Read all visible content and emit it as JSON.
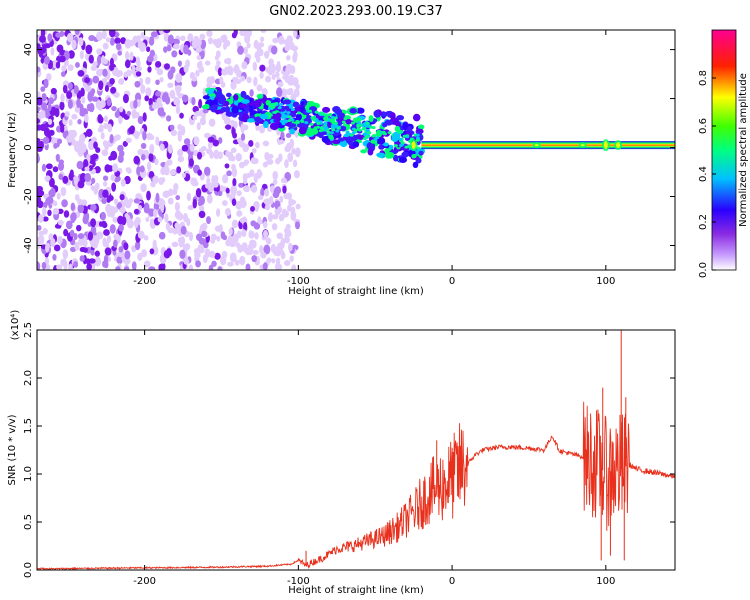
{
  "title": "GN02.2023.293.00.19.C37",
  "chart_data": [
    {
      "type": "heatmap",
      "xlabel": "Height of straight line (km)",
      "ylabel": "Frequency (Hz)",
      "xlim": [
        -270,
        145
      ],
      "ylim": [
        -50,
        48
      ],
      "xticks": [
        -200,
        -100,
        0,
        100
      ],
      "yticks": [
        40,
        20,
        0,
        -20,
        -40
      ],
      "colorbar": {
        "label": "Normalized spectral amplitude",
        "range": [
          0.0,
          1.0
        ],
        "ticks": [
          0.0,
          0.2,
          0.4,
          0.6,
          0.8
        ],
        "colormap": [
          "#ffffff",
          "#8a2be2",
          "#2a00ff",
          "#00c0ff",
          "#00ff60",
          "#ffff00",
          "#ff2000",
          "#ff0090"
        ]
      },
      "features": [
        {
          "x": [
            -270,
            -100
          ],
          "f": [
            -50,
            48
          ],
          "amplitude": 0.12,
          "pattern": "scattered noise"
        },
        {
          "x": [
            -160,
            -20
          ],
          "f_start": 20,
          "f_end": 2,
          "amplitude": 0.35,
          "pattern": "descending band"
        },
        {
          "x": [
            -20,
            145
          ],
          "f": 1,
          "amplitude": 0.9,
          "pattern": "steady tone"
        }
      ]
    },
    {
      "type": "line",
      "xlabel": "Height of straight line (km)",
      "ylabel": "SNR (10 * v/v)",
      "multiplier": "(x10⁴)",
      "xlim": [
        -270,
        145
      ],
      "ylim": [
        0,
        2.5
      ],
      "xticks": [
        -200,
        -100,
        0,
        100
      ],
      "yticks": [
        "0.0",
        "0.5",
        "1.0",
        "1.5",
        "2.0",
        "2.5"
      ],
      "series": [
        {
          "color": "#e8301c",
          "x": [
            -270,
            -250,
            -220,
            -180,
            -150,
            -120,
            -105,
            -100,
            -95,
            -85,
            -75,
            -65,
            -55,
            -45,
            -35,
            -25,
            -15,
            -5,
            0,
            5,
            10,
            15,
            20,
            30,
            40,
            50,
            60,
            65,
            70,
            80,
            85,
            90,
            95,
            100,
            105,
            110,
            115,
            120,
            130,
            145
          ],
          "y": [
            0.01,
            0.015,
            0.02,
            0.025,
            0.03,
            0.04,
            0.06,
            0.1,
            0.05,
            0.12,
            0.22,
            0.25,
            0.3,
            0.35,
            0.45,
            0.6,
            0.8,
            0.9,
            0.95,
            1.05,
            1.1,
            1.2,
            1.25,
            1.28,
            1.28,
            1.27,
            1.25,
            1.4,
            1.24,
            1.2,
            1.18,
            1.15,
            1.1,
            1.0,
            1.05,
            1.05,
            1.1,
            1.05,
            1.02,
            0.97
          ]
        }
      ],
      "spikes": [
        {
          "x": -95,
          "y": 0.2
        },
        {
          "x": -10,
          "y": 1.35
        },
        {
          "x": 98,
          "y": 1.9
        },
        {
          "x": 110,
          "y": 2.5
        },
        {
          "x": 113,
          "y": 1.8
        }
      ],
      "dips": [
        {
          "x": 97,
          "y": 0.1
        },
        {
          "x": 103,
          "y": 0.15
        },
        {
          "x": 112,
          "y": 0.1
        }
      ]
    }
  ]
}
